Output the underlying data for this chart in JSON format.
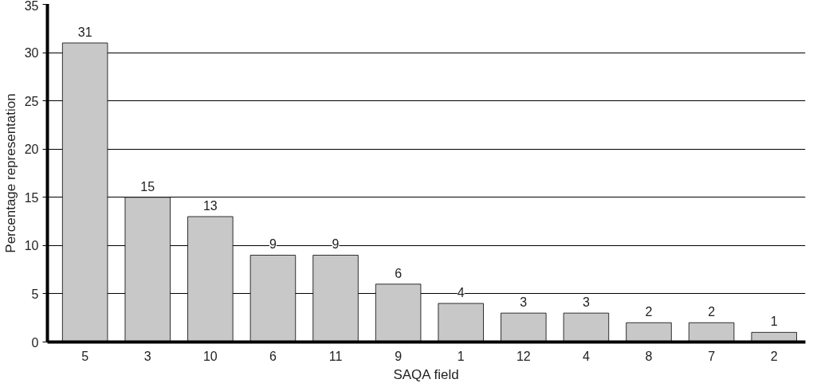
{
  "chart_data": {
    "type": "bar",
    "xlabel": "SAQA field",
    "ylabel": "Percentage representation",
    "categories": [
      "5",
      "3",
      "10",
      "6",
      "11",
      "9",
      "1",
      "12",
      "4",
      "8",
      "7",
      "2"
    ],
    "values": [
      31,
      15,
      13,
      9,
      9,
      6,
      4,
      3,
      3,
      2,
      2,
      1
    ],
    "color": "#c8c8c8",
    "ylim": [
      0,
      35
    ],
    "yticks": [
      0,
      5,
      10,
      15,
      20,
      25,
      30,
      35
    ],
    "grid": "y",
    "data_labels": true
  }
}
